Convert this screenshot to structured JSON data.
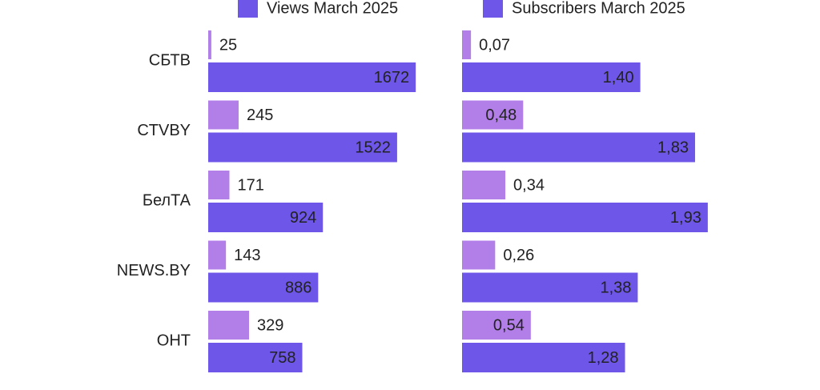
{
  "chart_data": [
    {
      "type": "bar",
      "horizontal": true,
      "categories": [
        "СБТВ",
        "CTVBY",
        "БелТА",
        "NEWS.BY",
        "ОНТ"
      ],
      "series": [
        {
          "color": "#b27ee8",
          "values": [
            25,
            245,
            171,
            143,
            329
          ]
        },
        {
          "name": "Views March 2025",
          "color": "#6d56e8",
          "values": [
            1672,
            1522,
            924,
            886,
            758
          ]
        }
      ]
    },
    {
      "type": "bar",
      "horizontal": true,
      "series": [
        {
          "color": "#b27ee8",
          "values": [
            0.07,
            0.48,
            0.34,
            0.26,
            0.54
          ],
          "value_labels": [
            "0,07",
            "0,48",
            "0,34",
            "0,26",
            "0,54"
          ]
        },
        {
          "name": "Subscribers March 2025",
          "color": "#6d56e8",
          "values": [
            1.4,
            1.83,
            1.93,
            1.38,
            1.28
          ],
          "value_labels": [
            "1,40",
            "1,83",
            "1,93",
            "1,38",
            "1,28"
          ]
        }
      ]
    }
  ]
}
